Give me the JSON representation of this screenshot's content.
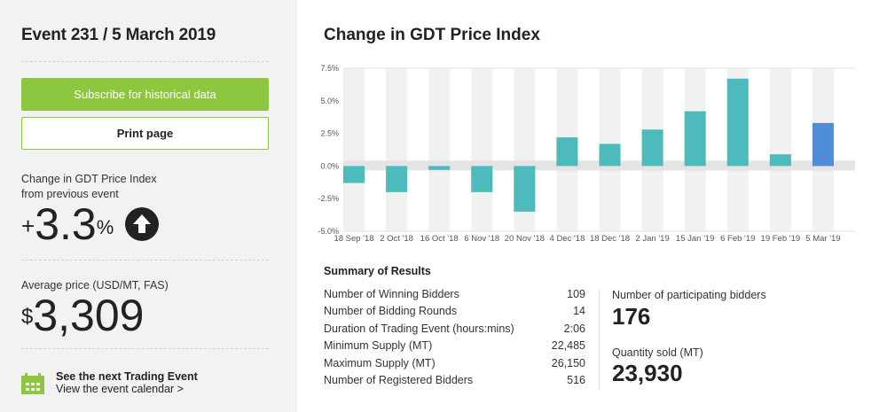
{
  "sidebar": {
    "event_title": "Event 231 / 5 March 2019",
    "subscribe_label": "Subscribe for historical data",
    "print_label": "Print page",
    "change_label_1": "Change in GDT Price Index",
    "change_label_2": "from previous event",
    "change_sign": "+",
    "change_value": "3.3",
    "change_unit": "%",
    "change_direction_icon": "arrow-up-icon",
    "avg_price_label": "Average price (USD/MT, FAS)",
    "avg_price_currency": "$",
    "avg_price_value": "3,309",
    "next_event_title": "See the next Trading Event",
    "next_event_link": "View the event calendar >",
    "calendar_icon": "calendar-icon"
  },
  "colors": {
    "brand_green": "#8dc63f",
    "bar_teal": "#4dbbbb",
    "bar_current": "#4f8ed6"
  },
  "summary": {
    "title": "Summary of Results",
    "rows": [
      {
        "label": "Number of Winning Bidders",
        "value": "109"
      },
      {
        "label": "Number of Bidding Rounds",
        "value": "14"
      },
      {
        "label": "Duration of Trading Event (hours:mins)",
        "value": "2:06"
      },
      {
        "label": "Minimum Supply (MT)",
        "value": "22,485"
      },
      {
        "label": "Maximum Supply (MT)",
        "value": "26,150"
      },
      {
        "label": "Number of Registered Bidders",
        "value": "516"
      }
    ],
    "participating_label": "Number of participating bidders",
    "participating_value": "176",
    "quantity_label": "Quantity sold (MT)",
    "quantity_value": "23,930"
  },
  "chart_data": {
    "type": "bar",
    "title": "Change in GDT Price Index",
    "xlabel": "",
    "ylabel": "",
    "categories": [
      "18 Sep '18",
      "2 Oct '18",
      "16 Oct '18",
      "6 Nov '18",
      "20 Nov '18",
      "4 Dec '18",
      "18 Dec '18",
      "2 Jan '19",
      "15 Jan '19",
      "6 Feb '19",
      "19 Feb '19",
      "5 Mar '19"
    ],
    "values": [
      -1.3,
      -2.0,
      -0.3,
      -2.0,
      -3.5,
      2.2,
      1.7,
      2.8,
      4.2,
      6.7,
      0.9,
      3.3
    ],
    "highlight_index": 11,
    "ylim": [
      -5.0,
      7.5
    ],
    "yticks": [
      "7.5%",
      "5.0%",
      "2.5%",
      "0.0%",
      "-2.5%",
      "-5.0%"
    ],
    "ytick_values": [
      7.5,
      5.0,
      2.5,
      0.0,
      -2.5,
      -5.0
    ],
    "grid": "alternating column bands",
    "legend": "none"
  }
}
